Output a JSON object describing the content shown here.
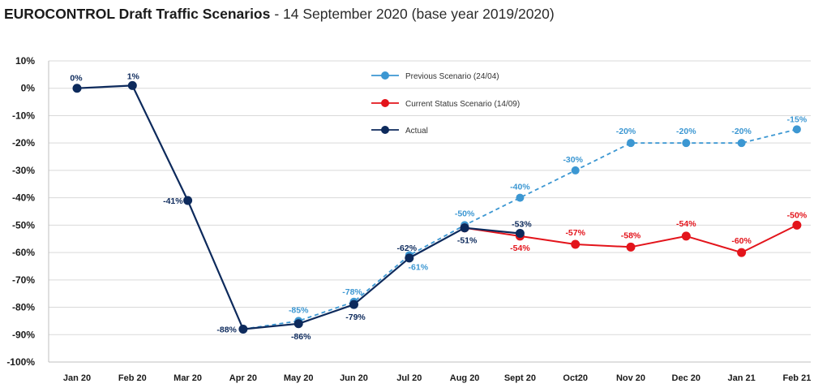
{
  "chart_data": {
    "type": "line",
    "title": "EUROCONTROL Draft Traffic Scenarios",
    "subtitle": "- 14 September 2020 (base year 2019/2020)",
    "categories": [
      "Jan 20",
      "Feb 20",
      "Mar 20",
      "Apr 20",
      "May 20",
      "Jun 20",
      "Jul 20",
      "Aug 20",
      "Sept 20",
      "Oct20",
      "Nov 20",
      "Dec 20",
      "Jan 21",
      "Feb 21"
    ],
    "ylim": [
      -100,
      10
    ],
    "yticks": [
      10,
      0,
      -10,
      -20,
      -30,
      -40,
      -50,
      -60,
      -70,
      -80,
      -90,
      -100
    ],
    "ytick_labels": [
      "10%",
      "0%",
      "-10%",
      "-20%",
      "-30%",
      "-40%",
      "-50%",
      "-60%",
      "-70%",
      "-80%",
      "-90%",
      "-100%"
    ],
    "grid": "horizontal",
    "legend": "top-center",
    "series": [
      {
        "name": "Previous Scenario (24/04)",
        "color": "#3c97d2",
        "line_style": "dashed",
        "values": [
          null,
          null,
          null,
          -88,
          -85,
          -78,
          -61,
          -50,
          -40,
          -30,
          -20,
          -20,
          -20,
          -15
        ],
        "labels": [
          null,
          null,
          null,
          null,
          "-85%",
          "-78%",
          "-61%",
          "-50%",
          "-40%",
          "-30%",
          "-20%",
          "-20%",
          "-20%",
          "-15%"
        ]
      },
      {
        "name": "Current Status Scenario (14/09)",
        "color": "#e3141b",
        "line_style": "solid",
        "values": [
          null,
          null,
          null,
          null,
          null,
          null,
          null,
          -51,
          -54,
          -57,
          -58,
          -54,
          -60,
          -50
        ],
        "labels": [
          null,
          null,
          null,
          null,
          null,
          null,
          null,
          null,
          "-54%",
          "-57%",
          "-58%",
          "-54%",
          "-60%",
          "-50%"
        ]
      },
      {
        "name": "Actual",
        "color": "#0d2a5c",
        "line_style": "solid",
        "values": [
          0,
          1,
          -41,
          -88,
          -86,
          -79,
          -62,
          -51,
          -53,
          null,
          null,
          null,
          null,
          null
        ],
        "labels": [
          "0%",
          "1%",
          "-41%",
          "-88%",
          "-86%",
          "-79%",
          "-62%",
          "-51%",
          "-53%",
          null,
          null,
          null,
          null,
          null
        ]
      }
    ]
  }
}
